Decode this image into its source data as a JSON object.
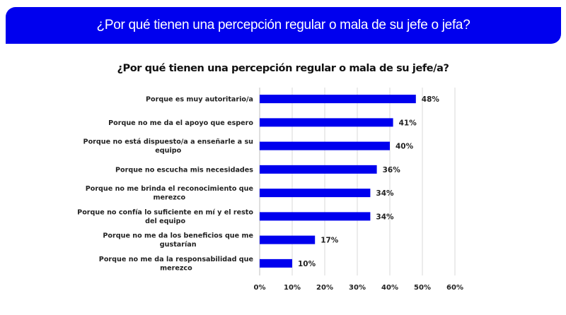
{
  "banner": {
    "title": "¿Por qué tienen una percepción regular o mala de su jefe o jefa?"
  },
  "colors": {
    "banner": "#0000ee",
    "bar": "#0000ee",
    "grid": "#d9d9d9"
  },
  "chart_data": {
    "type": "bar",
    "orientation": "horizontal",
    "title": "¿Por qué tienen una percepción regular o mala de su jefe/a?",
    "xlabel": "",
    "ylabel": "",
    "categories": [
      [
        "Porque es muy autoritario/a"
      ],
      [
        "Porque no me da el apoyo que espero"
      ],
      [
        "Porque no está dispuesto/a a enseñarle a su",
        "equipo"
      ],
      [
        "Porque no escucha mis necesidades"
      ],
      [
        "Porque no me brinda el reconocimiento que",
        "merezco"
      ],
      [
        "Porque no confía lo suficiente en mí y el resto",
        "del equipo"
      ],
      [
        "Porque no me da los beneficios que me",
        "gustarían"
      ],
      [
        "Porque no me da la responsabilidad que",
        "merezco"
      ]
    ],
    "values": [
      48,
      41,
      40,
      36,
      34,
      34,
      17,
      10
    ],
    "value_labels": [
      "48%",
      "41%",
      "40%",
      "36%",
      "34%",
      "34%",
      "17%",
      "10%"
    ],
    "xlim": [
      0,
      60
    ],
    "xticks": [
      0,
      10,
      20,
      30,
      40,
      50,
      60
    ],
    "xtick_labels": [
      "0%",
      "10%",
      "20%",
      "30%",
      "40%",
      "50%",
      "60%"
    ],
    "grid": true,
    "legend": "none"
  }
}
